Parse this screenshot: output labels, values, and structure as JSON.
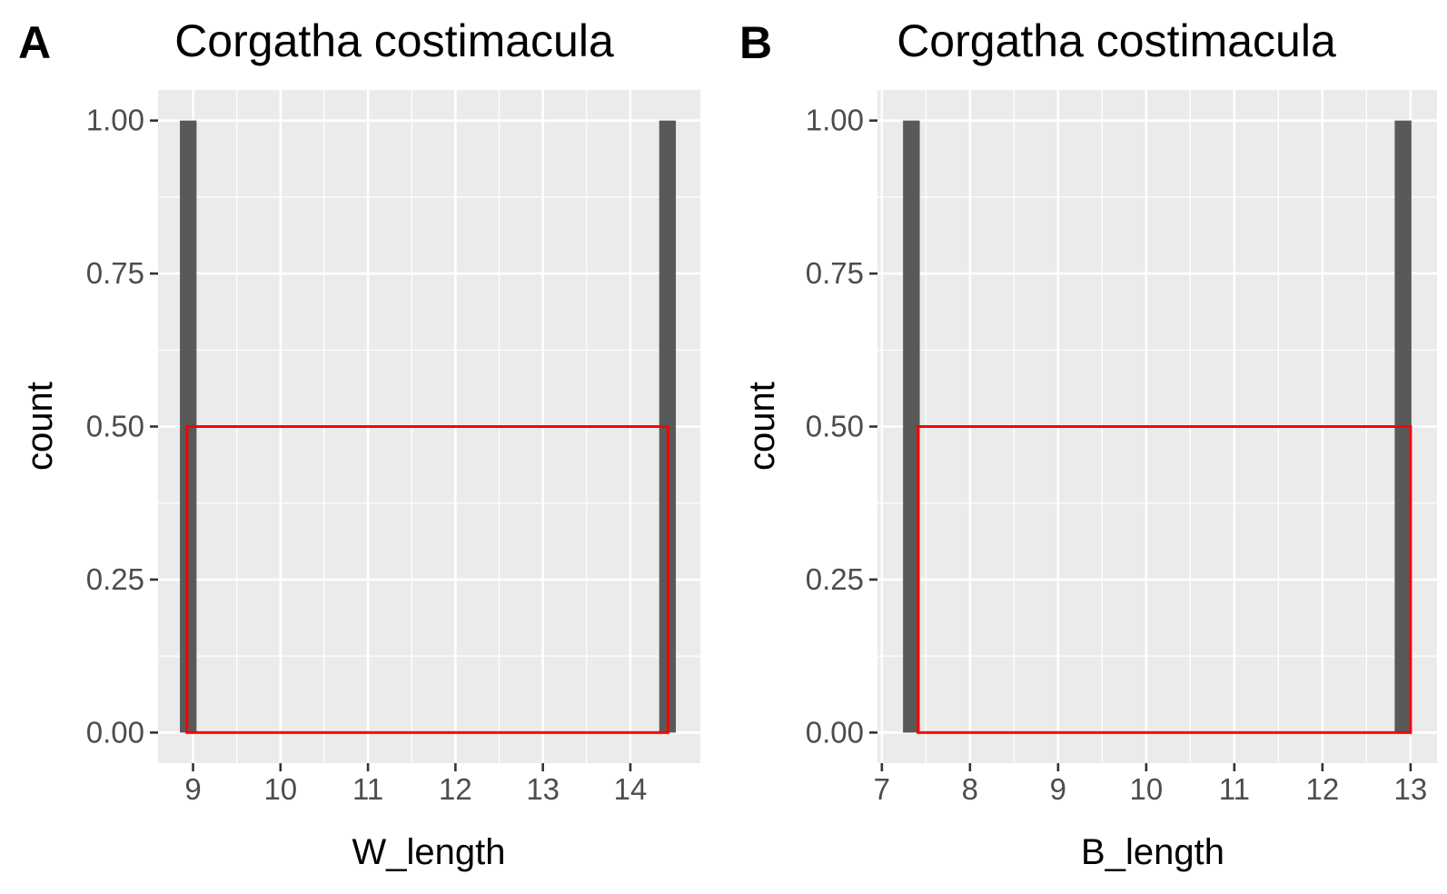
{
  "chart_data": [
    {
      "type": "bar",
      "panel_label": "A",
      "title": "Corgatha costimacula",
      "xlabel": "W_length",
      "ylabel": "count",
      "xlim": [
        8.6,
        14.8
      ],
      "ylim": [
        -0.05,
        1.05
      ],
      "x_ticks": [
        9,
        10,
        11,
        12,
        13,
        14
      ],
      "x_tick_labels": [
        "9",
        "10",
        "11",
        "12",
        "13",
        "14"
      ],
      "y_ticks": [
        0,
        0.25,
        0.5,
        0.75,
        1
      ],
      "y_tick_labels": [
        "0.00",
        "0.25",
        "0.50",
        "0.75",
        "1.00"
      ],
      "grid": true,
      "bar_color": "#595959",
      "bars": [
        {
          "x_start": 8.85,
          "x_end": 9.04,
          "value": 1
        },
        {
          "x_start": 14.33,
          "x_end": 14.52,
          "value": 1
        }
      ],
      "highlight_box": {
        "x_start": 8.93,
        "x_end": 14.43,
        "y_start": 0,
        "y_end": 0.5,
        "color": "#ff0000"
      }
    },
    {
      "type": "bar",
      "panel_label": "B",
      "title": "Corgatha costimacula",
      "xlabel": "B_length",
      "ylabel": "count",
      "xlim": [
        6.95,
        13.3
      ],
      "ylim": [
        -0.05,
        1.05
      ],
      "x_ticks": [
        7,
        8,
        9,
        10,
        11,
        12,
        13
      ],
      "x_tick_labels": [
        "7",
        "8",
        "9",
        "10",
        "11",
        "12",
        "13"
      ],
      "y_ticks": [
        0,
        0.25,
        0.5,
        0.75,
        1
      ],
      "y_tick_labels": [
        "0.00",
        "0.25",
        "0.50",
        "0.75",
        "1.00"
      ],
      "grid": true,
      "bar_color": "#595959",
      "bars": [
        {
          "x_start": 7.24,
          "x_end": 7.43,
          "value": 1
        },
        {
          "x_start": 12.82,
          "x_end": 13.01,
          "value": 1
        }
      ],
      "highlight_box": {
        "x_start": 7.41,
        "x_end": 13.0,
        "y_start": 0,
        "y_end": 0.5,
        "color": "#ff0000"
      }
    }
  ]
}
